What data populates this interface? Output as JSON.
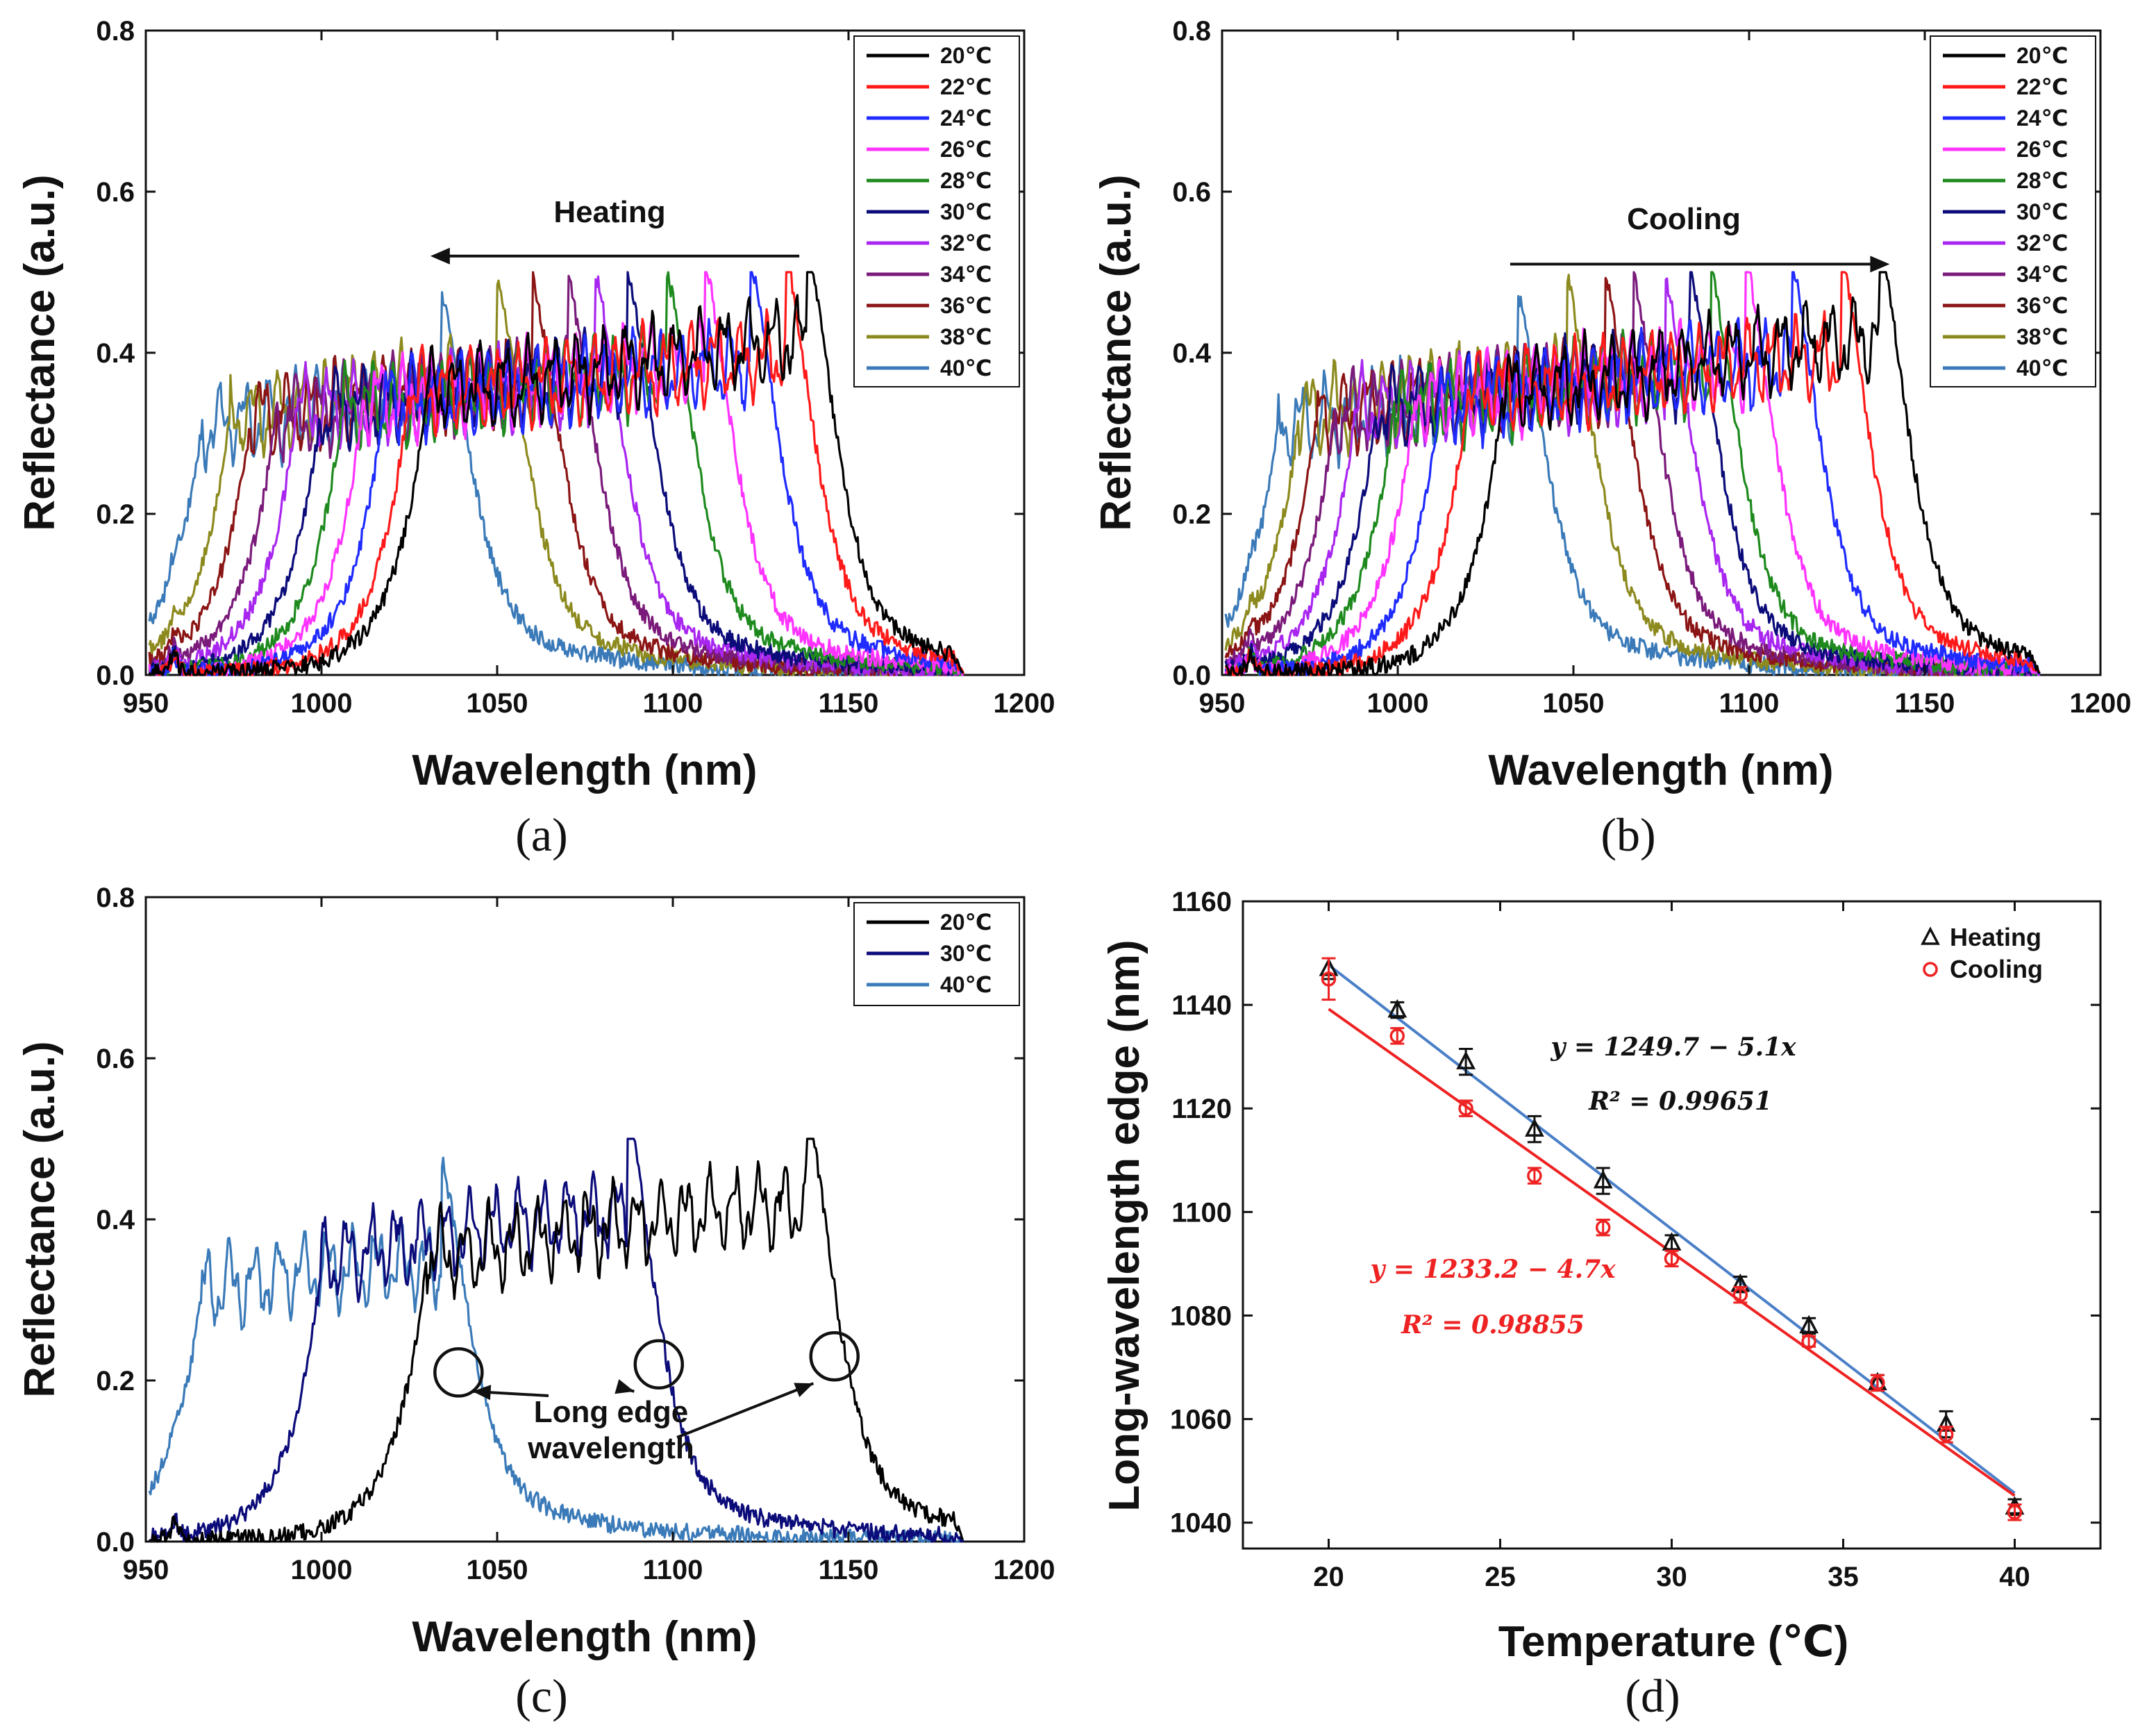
{
  "colors": {
    "20": "#000000",
    "22": "#ff1a1a",
    "24": "#1f2bff",
    "26": "#ff33ff",
    "28": "#1e8a1e",
    "30": "#0b0b7a",
    "32": "#a826f0",
    "34": "#7a1a7a",
    "36": "#8b1414",
    "38": "#8c8a1e",
    "40": "#3a7ab8",
    "fit_heating": "#4a7fc8",
    "fit_cooling": "#ee2222",
    "eq_cooling": "#ee2222"
  },
  "chart_data": [
    {
      "id": "a",
      "type": "line",
      "panel_label": "(a)",
      "xlabel": "Wavelength (nm)",
      "ylabel": "Reflectance (a.u.)",
      "xlim": [
        950,
        1200
      ],
      "ylim": [
        0,
        0.8
      ],
      "xticks": [
        "950",
        "1000",
        "1050",
        "1100",
        "1150",
        "1200"
      ],
      "yticks": [
        "0.0",
        "0.2",
        "0.4",
        "0.6",
        "0.8"
      ],
      "annotation": "Heating",
      "arrow": {
        "from": 1136,
        "to": 1031,
        "level": 0.52
      },
      "legend": [
        "20℃",
        "22℃",
        "24℃",
        "26℃",
        "28℃",
        "30℃",
        "32℃",
        "34℃",
        "36℃",
        "38℃",
        "40℃"
      ],
      "series": [
        {
          "name": "20℃",
          "temp": "20",
          "long_edge": 1146,
          "short_edge": 1030,
          "plateau_low": 0.34,
          "plateau_high": 0.41
        },
        {
          "name": "22℃",
          "temp": "22",
          "long_edge": 1140,
          "short_edge": 1025,
          "plateau_low": 0.34,
          "plateau_high": 0.39
        },
        {
          "name": "24℃",
          "temp": "24",
          "long_edge": 1130,
          "short_edge": 1018,
          "plateau_low": 0.33,
          "plateau_high": 0.38
        },
        {
          "name": "26℃",
          "temp": "26",
          "long_edge": 1117,
          "short_edge": 1012,
          "plateau_low": 0.33,
          "plateau_high": 0.38
        },
        {
          "name": "28℃",
          "temp": "28",
          "long_edge": 1106,
          "short_edge": 1006,
          "plateau_low": 0.32,
          "plateau_high": 0.37
        },
        {
          "name": "30℃",
          "temp": "30",
          "long_edge": 1095,
          "short_edge": 1000,
          "plateau_low": 0.32,
          "plateau_high": 0.37
        },
        {
          "name": "32℃",
          "temp": "32",
          "long_edge": 1086,
          "short_edge": 993,
          "plateau_low": 0.32,
          "plateau_high": 0.36
        },
        {
          "name": "34℃",
          "temp": "34",
          "long_edge": 1078,
          "short_edge": 987,
          "plateau_low": 0.31,
          "plateau_high": 0.36
        },
        {
          "name": "36℃",
          "temp": "36",
          "long_edge": 1068,
          "short_edge": 980,
          "plateau_low": 0.31,
          "plateau_high": 0.36
        },
        {
          "name": "38℃",
          "temp": "38",
          "long_edge": 1058,
          "short_edge": 974,
          "plateau_low": 0.31,
          "plateau_high": 0.36
        },
        {
          "name": "40℃",
          "temp": "40",
          "long_edge": 1042,
          "short_edge": 966,
          "plateau_low": 0.3,
          "plateau_high": 0.34
        }
      ]
    },
    {
      "id": "b",
      "type": "line",
      "panel_label": "(b)",
      "xlabel": "Wavelength (nm)",
      "ylabel": "Reflectance (a.u.)",
      "xlim": [
        950,
        1200
      ],
      "ylim": [
        0,
        0.8
      ],
      "xticks": [
        "950",
        "1000",
        "1050",
        "1100",
        "1150",
        "1200"
      ],
      "yticks": [
        "0.0",
        "0.2",
        "0.4",
        "0.6",
        "0.8"
      ],
      "annotation": "Cooling",
      "arrow": {
        "from": 1032,
        "to": 1140,
        "level": 0.51
      },
      "legend": [
        "20℃",
        "22℃",
        "24℃",
        "26℃",
        "28℃",
        "30℃",
        "32℃",
        "34℃",
        "36℃",
        "38℃",
        "40℃"
      ],
      "series": [
        {
          "name": "20℃",
          "temp": "20",
          "long_edge": 1145,
          "short_edge": 1030,
          "plateau_low": 0.34,
          "plateau_high": 0.41
        },
        {
          "name": "22℃",
          "temp": "22",
          "long_edge": 1134,
          "short_edge": 1020,
          "plateau_low": 0.34,
          "plateau_high": 0.39
        },
        {
          "name": "24℃",
          "temp": "24",
          "long_edge": 1120,
          "short_edge": 1012,
          "plateau_low": 0.33,
          "plateau_high": 0.38
        },
        {
          "name": "26℃",
          "temp": "26",
          "long_edge": 1107,
          "short_edge": 1005,
          "plateau_low": 0.33,
          "plateau_high": 0.38
        },
        {
          "name": "28℃",
          "temp": "28",
          "long_edge": 1097,
          "short_edge": 999,
          "plateau_low": 0.32,
          "plateau_high": 0.37
        },
        {
          "name": "30℃",
          "temp": "30",
          "long_edge": 1091,
          "short_edge": 994,
          "plateau_low": 0.32,
          "plateau_high": 0.37
        },
        {
          "name": "32℃",
          "temp": "32",
          "long_edge": 1084,
          "short_edge": 988,
          "plateau_low": 0.32,
          "plateau_high": 0.36
        },
        {
          "name": "34℃",
          "temp": "34",
          "long_edge": 1075,
          "short_edge": 982,
          "plateau_low": 0.31,
          "plateau_high": 0.36
        },
        {
          "name": "36℃",
          "temp": "36",
          "long_edge": 1067,
          "short_edge": 977,
          "plateau_low": 0.31,
          "plateau_high": 0.36
        },
        {
          "name": "38℃",
          "temp": "38",
          "long_edge": 1056,
          "short_edge": 972,
          "plateau_low": 0.31,
          "plateau_high": 0.36
        },
        {
          "name": "40℃",
          "temp": "40",
          "long_edge": 1042,
          "short_edge": 966,
          "plateau_low": 0.3,
          "plateau_high": 0.34
        }
      ]
    },
    {
      "id": "c",
      "type": "line",
      "panel_label": "(c)",
      "xlabel": "Wavelength (nm)",
      "ylabel": "Reflectance (a.u.)",
      "xlim": [
        950,
        1200
      ],
      "ylim": [
        0,
        0.8
      ],
      "xticks": [
        "950",
        "1000",
        "1050",
        "1100",
        "1150",
        "1200"
      ],
      "yticks": [
        "0.0",
        "0.2",
        "0.4",
        "0.6",
        "0.8"
      ],
      "annotation_lines": [
        "Long edge",
        "wavelength"
      ],
      "edge_markers": [
        {
          "temp": "40",
          "x": 1039,
          "y": 0.21
        },
        {
          "temp": "30",
          "x": 1096,
          "y": 0.22
        },
        {
          "temp": "20",
          "x": 1146,
          "y": 0.23
        }
      ],
      "legend": [
        "20℃",
        "30℃",
        "40℃"
      ],
      "series": [
        {
          "name": "20℃",
          "temp": "20",
          "long_edge": 1146,
          "short_edge": 1030,
          "plateau_low": 0.34,
          "plateau_high": 0.41
        },
        {
          "name": "30℃",
          "temp": "30",
          "long_edge": 1095,
          "short_edge": 1000,
          "plateau_low": 0.33,
          "plateau_high": 0.4
        },
        {
          "name": "40℃",
          "temp": "40",
          "long_edge": 1042,
          "short_edge": 966,
          "plateau_low": 0.3,
          "plateau_high": 0.34
        }
      ]
    },
    {
      "id": "d",
      "type": "scatter",
      "panel_label": "(d)",
      "xlabel": "Temperature (℃)",
      "ylabel": "Long-wavelength edge (nm)",
      "xlim": [
        17.5,
        42.5
      ],
      "ylim": [
        1035,
        1160
      ],
      "xticks": [
        "20",
        "25",
        "30",
        "35",
        "40"
      ],
      "yticks": [
        "1040",
        "1060",
        "1080",
        "1100",
        "1120",
        "1140",
        "1160"
      ],
      "x": [
        20,
        22,
        24,
        26,
        28,
        30,
        32,
        34,
        36,
        38,
        40
      ],
      "series": [
        {
          "name": "Heating",
          "marker": "triangle",
          "values": [
            1147,
            1139,
            1129,
            1116,
            1106,
            1094,
            1086,
            1078,
            1067,
            1059,
            1043
          ],
          "errors": [
            2,
            1.5,
            2.5,
            2.5,
            2.5,
            1.5,
            1.5,
            1.5,
            1.5,
            2.5,
            1.5
          ]
        },
        {
          "name": "Cooling",
          "marker": "circle",
          "values": [
            1145,
            1134,
            1120,
            1107,
            1097,
            1091,
            1084,
            1075,
            1067,
            1057,
            1042
          ],
          "errors": [
            4,
            1.5,
            1.5,
            1.5,
            1.5,
            1.5,
            1.5,
            1,
            1.5,
            1.5,
            1.5
          ]
        }
      ],
      "fits": [
        {
          "name": "Heating fit",
          "intercept": 1249.7,
          "slope": -5.1,
          "equation": "y = 1249.7 − 5.1x",
          "r2": "R² = 0.99651"
        },
        {
          "name": "Cooling fit",
          "intercept": 1233.2,
          "slope": -4.7,
          "equation": "y = 1233.2 − 4.7x",
          "r2": "R² = 0.98855"
        }
      ],
      "legend": [
        "Heating",
        "Cooling"
      ]
    }
  ]
}
